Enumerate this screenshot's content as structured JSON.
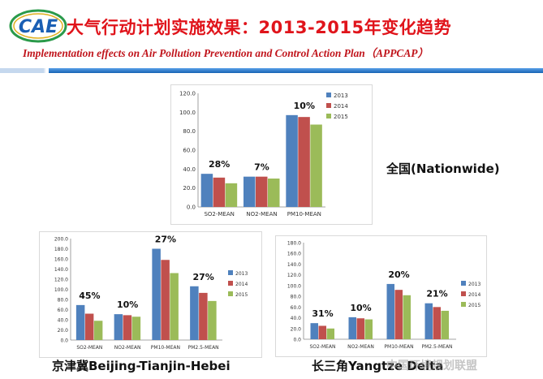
{
  "header": {
    "logo_text": "CAE",
    "title_cn": "大气行动计划实施效果：2013-2015年变化趋势",
    "title_en": "Implementation effects on Air Pollution Prevention and Control Action Plan（APPCAP）"
  },
  "captions": {
    "nationwide": "全国(Nationwide)",
    "bth": "京津冀Beijing-Tianjin-Hebei",
    "yrd": "长三角Yangtze Delta"
  },
  "watermark": "中国环境规划联盟",
  "colors": {
    "s2013": "#4f81bd",
    "s2014": "#c0504d",
    "s2015": "#9bbb59",
    "title": "#e0141b",
    "band": "#1d6fc0"
  },
  "chart_data": [
    {
      "type": "bar",
      "region": "Nationwide",
      "categories": [
        "SO2-MEAN",
        "NO2-MEAN",
        "PM10-MEAN"
      ],
      "series": [
        {
          "name": "2013",
          "values": [
            35,
            32,
            97
          ]
        },
        {
          "name": "2014",
          "values": [
            31,
            32,
            95
          ]
        },
        {
          "name": "2015",
          "values": [
            25,
            30,
            87
          ]
        }
      ],
      "annotations": [
        "28%",
        "7%",
        "10%"
      ],
      "yticks": [
        "0.0",
        "20.0",
        "40.0",
        "60.0",
        "80.0",
        "100.0",
        "120.0"
      ],
      "ylim": [
        0,
        120
      ],
      "legend": "top-right"
    },
    {
      "type": "bar",
      "region": "Beijing-Tianjin-Hebei",
      "categories": [
        "SO2-MEAN",
        "NO2-MEAN",
        "PM10-MEAN",
        "PM2.5-MEAN"
      ],
      "series": [
        {
          "name": "2013",
          "values": [
            69,
            51,
            180,
            106
          ]
        },
        {
          "name": "2014",
          "values": [
            52,
            49,
            158,
            93
          ]
        },
        {
          "name": "2015",
          "values": [
            38,
            46,
            132,
            77
          ]
        }
      ],
      "annotations": [
        "45%",
        "10%",
        "27%",
        "27%"
      ],
      "yticks": [
        "0.0",
        "20.0",
        "40.0",
        "60.0",
        "80.0",
        "100.0",
        "120.0",
        "140.0",
        "160.0",
        "180.0",
        "200.0"
      ],
      "ylim": [
        0,
        200
      ],
      "legend": "right"
    },
    {
      "type": "bar",
      "region": "Yangtze Delta",
      "categories": [
        "SO2-MEAN",
        "NO2-MEAN",
        "PM10-MEAN",
        "PM2.5-MEAN"
      ],
      "series": [
        {
          "name": "2013",
          "values": [
            30,
            41,
            103,
            67
          ]
        },
        {
          "name": "2014",
          "values": [
            25,
            39,
            92,
            60
          ]
        },
        {
          "name": "2015",
          "values": [
            20,
            37,
            82,
            53
          ]
        }
      ],
      "annotations": [
        "31%",
        "10%",
        "20%",
        "21%"
      ],
      "yticks": [
        "0.0",
        "20.0",
        "40.0",
        "60.0",
        "80.0",
        "100.0",
        "120.0",
        "140.0",
        "160.0",
        "180.0"
      ],
      "ylim": [
        0,
        180
      ],
      "legend": "right"
    }
  ]
}
